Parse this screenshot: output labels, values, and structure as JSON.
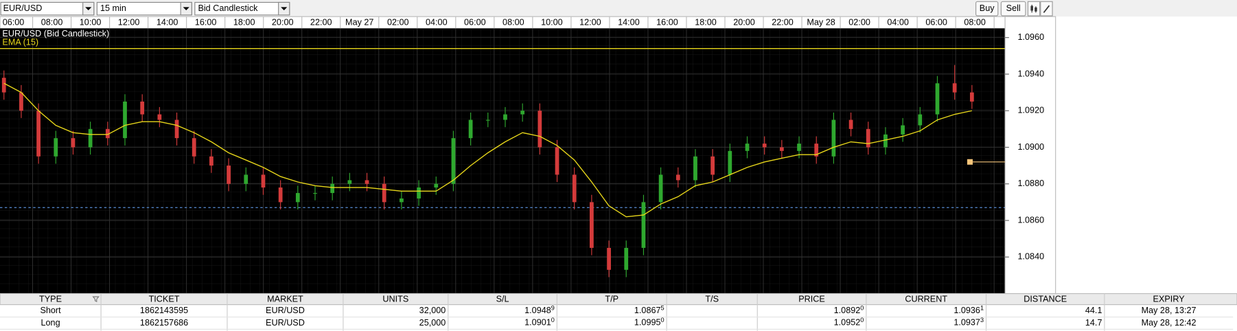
{
  "toolbar": {
    "symbol": "EUR/USD",
    "interval": "15 min",
    "chart_style": "Bid Candlestick",
    "buttons": [
      "Buy",
      "Sell"
    ]
  },
  "chart_data": {
    "type": "candlestick",
    "title": "EUR/USD (Bid Candlestick)",
    "x_labels": [
      "06:00",
      "08:00",
      "10:00",
      "12:00",
      "14:00",
      "16:00",
      "18:00",
      "20:00",
      "22:00",
      "May 27",
      "02:00",
      "04:00",
      "06:00",
      "08:00",
      "10:00",
      "12:00",
      "14:00",
      "16:00",
      "18:00",
      "20:00",
      "22:00",
      "May 28",
      "02:00",
      "04:00",
      "06:00",
      "08:00"
    ],
    "open": [
      1.0938,
      1.093,
      1.092,
      1.0895,
      1.0905,
      1.09,
      1.091,
      1.0905,
      1.0925,
      1.0918,
      1.0915,
      1.0905,
      1.0895,
      1.089,
      1.088,
      1.0885,
      1.0878,
      1.087,
      1.0875,
      1.0875,
      1.088,
      1.0882,
      1.088,
      1.087,
      1.0872,
      1.0878,
      1.088,
      1.0905,
      1.0915,
      1.0915,
      1.0918,
      1.092,
      1.09,
      1.0885,
      1.087,
      1.0845,
      1.0833,
      1.0845,
      1.087,
      1.0885,
      1.0882,
      1.0895,
      1.0885,
      1.0898,
      1.0902,
      1.09,
      1.0898,
      1.0902,
      1.0895,
      1.0915,
      1.091,
      1.09,
      1.0907,
      1.0912,
      1.0918,
      1.0935,
      1.093
    ],
    "high": [
      1.0942,
      1.0934,
      1.0924,
      1.0909,
      1.0909,
      1.0914,
      1.0914,
      1.0929,
      1.0929,
      1.0922,
      1.0919,
      1.0909,
      1.0899,
      1.0894,
      1.0889,
      1.0889,
      1.0882,
      1.0879,
      1.0879,
      1.0884,
      1.0886,
      1.0886,
      1.0884,
      1.0876,
      1.0882,
      1.0884,
      1.0909,
      1.0919,
      1.0919,
      1.0922,
      1.0924,
      1.0924,
      1.0904,
      1.0889,
      1.0874,
      1.0849,
      1.0849,
      1.0874,
      1.0889,
      1.0889,
      1.0899,
      1.0899,
      1.0902,
      1.0906,
      1.0906,
      1.0904,
      1.0906,
      1.0906,
      1.0919,
      1.0919,
      1.0914,
      1.0911,
      1.0916,
      1.0922,
      1.0939,
      1.0945,
      1.0934
    ],
    "low": [
      1.0926,
      1.0916,
      1.0891,
      1.0891,
      1.0896,
      1.0896,
      1.0901,
      1.0901,
      1.0914,
      1.0911,
      1.0901,
      1.0891,
      1.0886,
      1.0876,
      1.0876,
      1.0874,
      1.0866,
      1.0866,
      1.0871,
      1.0871,
      1.0876,
      1.0876,
      1.0866,
      1.0866,
      1.0868,
      1.0874,
      1.0876,
      1.0901,
      1.0911,
      1.0911,
      1.0914,
      1.0896,
      1.0881,
      1.0866,
      1.0841,
      1.0829,
      1.0829,
      1.0841,
      1.0866,
      1.0878,
      1.0878,
      1.0881,
      1.0881,
      1.0894,
      1.0896,
      1.0894,
      1.0894,
      1.0891,
      1.0891,
      1.0906,
      1.0896,
      1.0896,
      1.0903,
      1.0908,
      1.0914,
      1.0926,
      1.0921
    ],
    "close": [
      1.093,
      1.092,
      1.0895,
      1.0905,
      1.09,
      1.091,
      1.0905,
      1.0925,
      1.0918,
      1.0915,
      1.0905,
      1.0895,
      1.089,
      1.088,
      1.0885,
      1.0878,
      1.087,
      1.0875,
      1.0875,
      1.088,
      1.0882,
      1.088,
      1.087,
      1.0872,
      1.0878,
      1.088,
      1.0905,
      1.0915,
      1.0915,
      1.0918,
      1.092,
      1.09,
      1.0885,
      1.087,
      1.0845,
      1.0833,
      1.0845,
      1.087,
      1.0885,
      1.0882,
      1.0895,
      1.0885,
      1.0898,
      1.0902,
      1.09,
      1.0898,
      1.0902,
      1.0895,
      1.0915,
      1.091,
      1.09,
      1.0907,
      1.0912,
      1.0918,
      1.0935,
      1.093,
      1.0925
    ],
    "up_color": "#2fa82f",
    "down_color": "#d43b3b",
    "series": [
      {
        "name": "EMA (15)",
        "color": "#e8d71a",
        "values": [
          1.0935,
          1.093,
          1.092,
          1.0912,
          1.0908,
          1.0907,
          1.0907,
          1.0912,
          1.0914,
          1.0914,
          1.0912,
          1.0908,
          1.0903,
          1.0897,
          1.0893,
          1.0889,
          1.0884,
          1.0881,
          1.0879,
          1.0878,
          1.0878,
          1.0878,
          1.0877,
          1.0876,
          1.0876,
          1.0876,
          1.0882,
          1.089,
          1.0897,
          1.0903,
          1.0908,
          1.0906,
          1.0901,
          1.0893,
          1.0881,
          1.0868,
          1.0862,
          1.0863,
          1.0869,
          1.0873,
          1.0879,
          1.0881,
          1.0885,
          1.0889,
          1.0892,
          1.0894,
          1.0896,
          1.0896,
          1.09,
          1.0903,
          1.0902,
          1.0904,
          1.0906,
          1.0909,
          1.0915,
          1.0918,
          1.092
        ]
      }
    ],
    "ylim": [
      1.082,
      1.0965
    ],
    "yticks": [
      {
        "value": 1.096,
        "label": "1.0960"
      },
      {
        "value": 1.094,
        "label": "1.0940"
      },
      {
        "value": 1.092,
        "label": "1.0920"
      },
      {
        "value": 1.09,
        "label": "1.0900"
      },
      {
        "value": 1.088,
        "label": "1.0880"
      },
      {
        "value": 1.086,
        "label": "1.0860"
      },
      {
        "value": 1.084,
        "label": "1.0840"
      }
    ],
    "levels": [
      {
        "value": 1.0954,
        "color": "#e8d71a",
        "style": "solid"
      },
      {
        "value": 1.0867,
        "color": "#4f7fc0",
        "style": "dashed"
      }
    ],
    "marker": {
      "value": 1.0892,
      "color": "#f6c57a"
    },
    "grid": true
  },
  "table": {
    "columns": [
      "TYPE",
      "TICKET",
      "MARKET",
      "UNITS",
      "S/L",
      "T/P",
      "T/S",
      "PRICE",
      "CURRENT",
      "DISTANCE",
      "EXPIRY"
    ],
    "rows": [
      [
        "Short",
        "1862143595",
        "EUR/USD",
        "32,000",
        {
          "text": "1.0948",
          "sup": "9"
        },
        {
          "text": "1.0867",
          "sup": "5"
        },
        null,
        {
          "text": "1.0892",
          "sup": "0"
        },
        {
          "text": "1.0936",
          "sup": "1"
        },
        "44.1",
        "May 28, 13:27"
      ],
      [
        "Long",
        "1862157686",
        "EUR/USD",
        "25,000",
        {
          "text": "1.0901",
          "sup": "0"
        },
        {
          "text": "1.0995",
          "sup": "0"
        },
        null,
        {
          "text": "1.0952",
          "sup": "0"
        },
        {
          "text": "1.0937",
          "sup": "3"
        },
        "14.7",
        "May 28, 12:42"
      ]
    ]
  }
}
